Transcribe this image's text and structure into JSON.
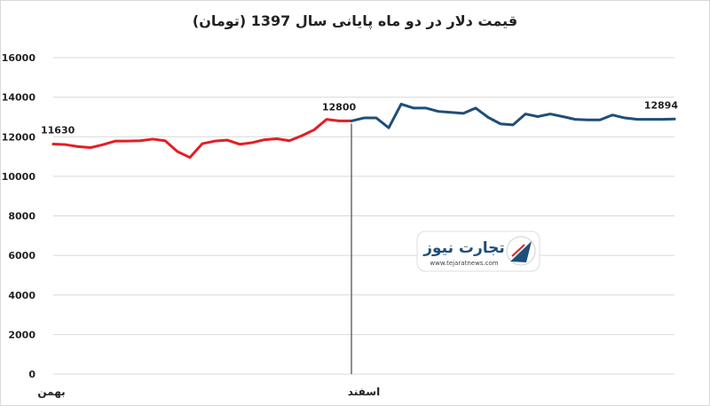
{
  "chart_data": {
    "type": "line",
    "title": "قیمت دلار در دو ماه پایانی سال 1397 (تومان)",
    "ylim": [
      0,
      16000
    ],
    "y_ticks": [
      "0",
      "2000",
      "4000",
      "6000",
      "8000",
      "10000",
      "12000",
      "14000",
      "16000"
    ],
    "grid": true,
    "x_labels": [
      {
        "index": 0,
        "text": "بهمن"
      },
      {
        "index": 24,
        "text": "اسفند"
      }
    ],
    "divider_index": 24,
    "series": [
      {
        "color": "#e31e24",
        "x": [
          0,
          1,
          2,
          3,
          4,
          5,
          6,
          7,
          8,
          9,
          10,
          11,
          12,
          13,
          14,
          15,
          16,
          17,
          18,
          19,
          20,
          21,
          22,
          23,
          24
        ],
        "values": [
          11630,
          11600,
          11500,
          11450,
          11600,
          11780,
          11780,
          11800,
          11880,
          11800,
          11250,
          10950,
          11650,
          11780,
          11830,
          11620,
          11700,
          11850,
          11900,
          11800,
          12050,
          12350,
          12880,
          12800,
          12800
        ]
      },
      {
        "color": "#1f4e79",
        "x": [
          24,
          25,
          26,
          27,
          28,
          29,
          30,
          31,
          32,
          33,
          34,
          35,
          36,
          37,
          38,
          39,
          40,
          41,
          42,
          43,
          44,
          45,
          46,
          47,
          48,
          49,
          50
        ],
        "values": [
          12800,
          12950,
          12950,
          12450,
          13650,
          13450,
          13450,
          13280,
          13230,
          13180,
          13450,
          12980,
          12650,
          12600,
          13150,
          13020,
          13150,
          13020,
          12880,
          12850,
          12850,
          13100,
          12950,
          12880,
          12880,
          12880,
          12894
        ]
      }
    ],
    "annotations": [
      {
        "index": 0,
        "series": 0,
        "text": "11630"
      },
      {
        "index": 23,
        "series": 0,
        "text": "12800"
      },
      {
        "index": 50,
        "series": 1,
        "text": "12894"
      }
    ]
  },
  "watermark": {
    "brand_text": "تجارت نیوز",
    "url_text": "www.tejaratnews.com",
    "accent": "#e31e24",
    "primary": "#1f4e79"
  }
}
